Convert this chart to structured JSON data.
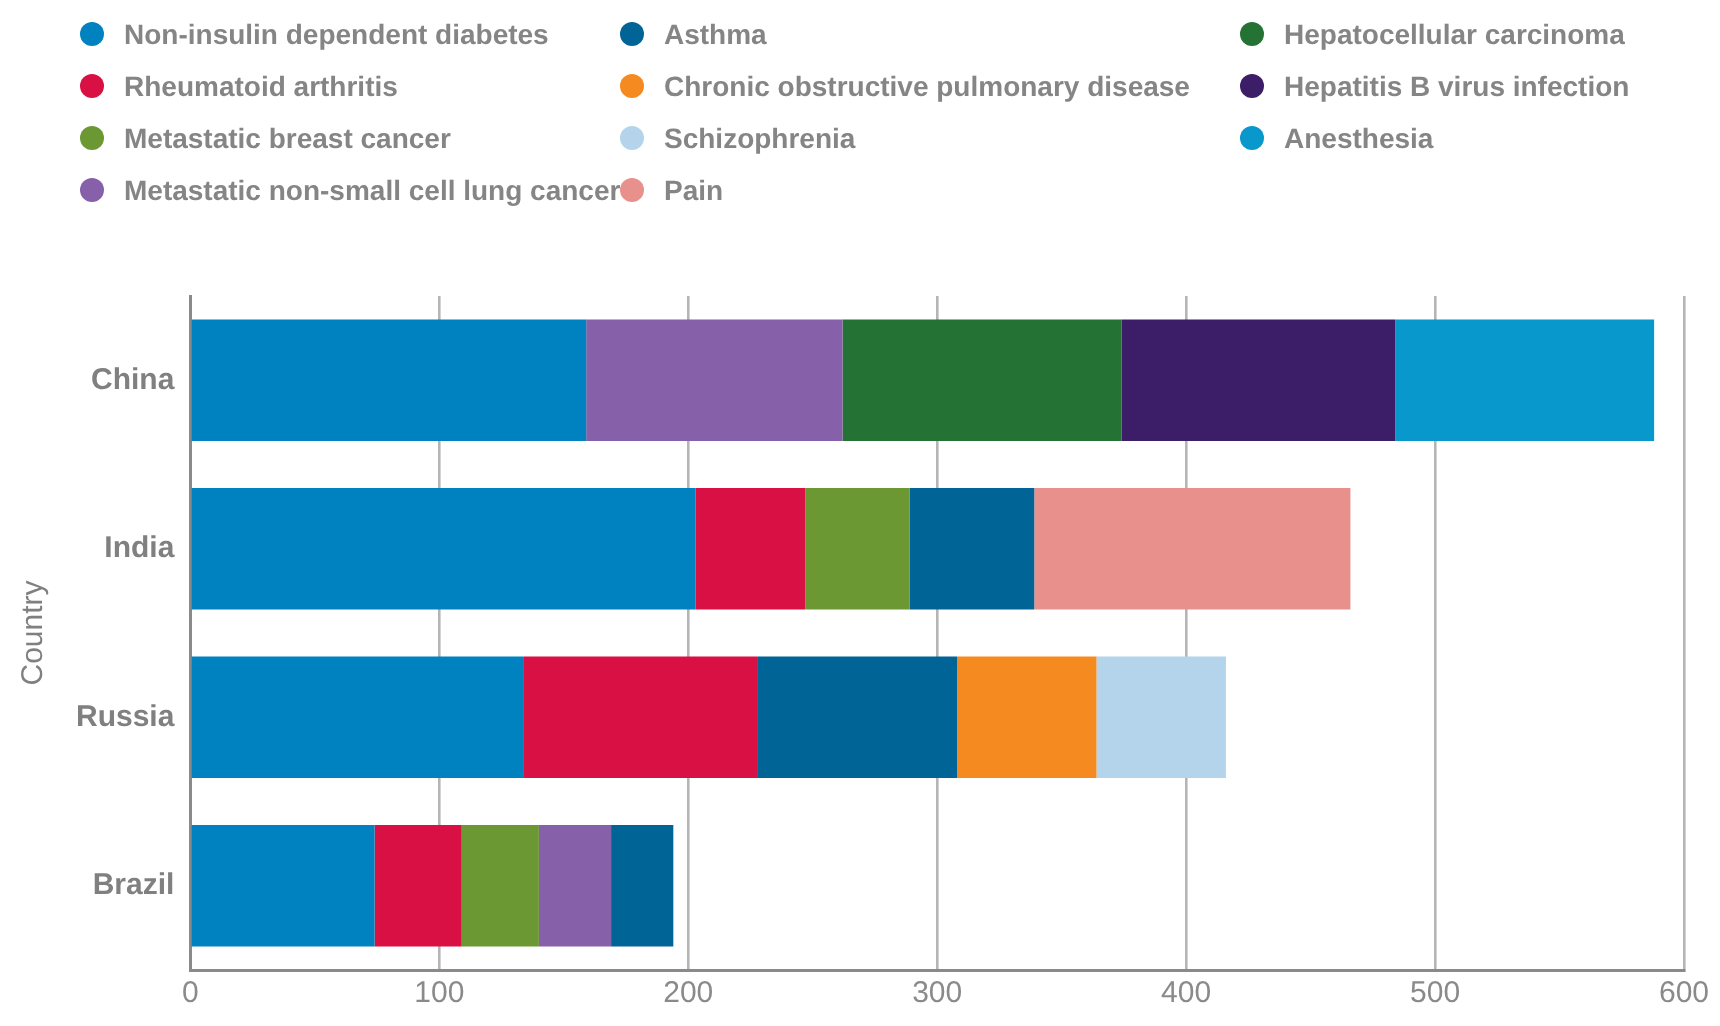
{
  "chart_data": {
    "type": "bar",
    "orientation": "horizontal",
    "stacked": true,
    "ylabel": "Country",
    "categories": [
      "China",
      "India",
      "Russia",
      "Brazil"
    ],
    "series": [
      {
        "name": "Non-insulin dependent diabetes",
        "color": "#0082c0",
        "values": [
          159,
          203,
          134,
          74
        ]
      },
      {
        "name": "Rheumatoid arthritis",
        "color": "#d91044",
        "values": [
          null,
          44,
          94,
          35
        ]
      },
      {
        "name": "Metastatic breast cancer",
        "color": "#6b9833",
        "values": [
          null,
          42,
          null,
          31
        ]
      },
      {
        "name": "Metastatic non-small cell lung cancer",
        "color": "#8660a8",
        "values": [
          103,
          null,
          null,
          29
        ]
      },
      {
        "name": "Asthma",
        "color": "#006496",
        "values": [
          null,
          50,
          80,
          25
        ]
      },
      {
        "name": "Chronic obstructive pulmonary disease",
        "color": "#f58a20",
        "values": [
          null,
          null,
          56,
          null
        ]
      },
      {
        "name": "Schizophrenia",
        "color": "#b3d4ea",
        "values": [
          null,
          null,
          52,
          null
        ]
      },
      {
        "name": "Pain",
        "color": "#e8908c",
        "values": [
          null,
          127,
          null,
          null
        ]
      },
      {
        "name": "Hepatocellular carcinoma",
        "color": "#247334",
        "values": [
          112,
          null,
          null,
          null
        ]
      },
      {
        "name": "Hepatitis B virus infection",
        "color": "#3c1e68",
        "values": [
          110,
          null,
          null,
          null
        ]
      },
      {
        "name": "Anesthesia",
        "color": "#0898cc",
        "values": [
          104,
          null,
          null,
          null
        ]
      }
    ],
    "xlim": [
      0,
      600
    ],
    "xticks": [
      0,
      100,
      200,
      300,
      400,
      500,
      600
    ],
    "grid": "x",
    "legend": "top"
  }
}
